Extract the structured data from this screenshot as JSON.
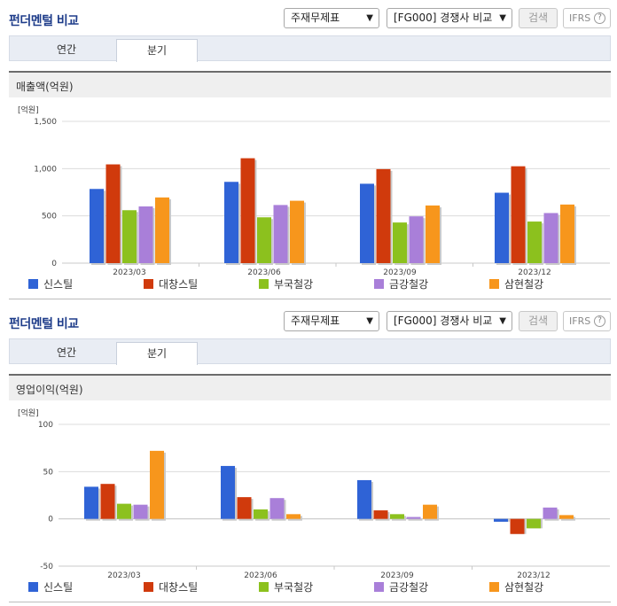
{
  "sections": [
    {
      "title": "펀더멘털 비교",
      "select_type": "주재무제표",
      "select_compare": "[FG000] 경쟁사 비교",
      "search_label": "검색",
      "ifrs_label": "IFRS",
      "help_label": "?",
      "tab_annual": "연간",
      "tab_quarter": "분기",
      "chart_title": "매출액(억원)"
    },
    {
      "title": "펀더멘털 비교",
      "select_type": "주재무제표",
      "select_compare": "[FG000] 경쟁사 비교",
      "search_label": "검색",
      "ifrs_label": "IFRS",
      "help_label": "?",
      "tab_annual": "연간",
      "tab_quarter": "분기",
      "chart_title": "영업이익(억원)"
    }
  ],
  "chart_data": [
    {
      "type": "bar",
      "title": "매출액(억원)",
      "unit_label": "[억원]",
      "categories": [
        "2023/03",
        "2023/06",
        "2023/09",
        "2023/12"
      ],
      "ylim": [
        0,
        1500
      ],
      "yticks": [
        "0",
        "500",
        "1,000",
        "1,500"
      ],
      "ytick_values": [
        0,
        500,
        1000,
        1500
      ],
      "grid": true,
      "legend_position": "bottom",
      "series": [
        {
          "name": "신스틸",
          "color": "#2f63d6",
          "values": [
            785,
            860,
            840,
            745
          ]
        },
        {
          "name": "대창스틸",
          "color": "#d03a0c",
          "values": [
            1045,
            1110,
            995,
            1025
          ]
        },
        {
          "name": "부국철강",
          "color": "#8cc11e",
          "values": [
            560,
            485,
            430,
            440
          ]
        },
        {
          "name": "금강철강",
          "color": "#a97fd9",
          "values": [
            600,
            615,
            495,
            530
          ]
        },
        {
          "name": "삼현철강",
          "color": "#f7961c",
          "values": [
            695,
            660,
            610,
            620
          ]
        }
      ]
    },
    {
      "type": "bar",
      "title": "영업이익(억원)",
      "unit_label": "[억원]",
      "categories": [
        "2023/03",
        "2023/06",
        "2023/09",
        "2023/12"
      ],
      "ylim": [
        -50,
        100
      ],
      "yticks": [
        "-50",
        "0",
        "50",
        "100"
      ],
      "ytick_values": [
        -50,
        0,
        50,
        100
      ],
      "grid": true,
      "legend_position": "bottom",
      "series": [
        {
          "name": "신스틸",
          "color": "#2f63d6",
          "values": [
            34,
            56,
            41,
            -3
          ]
        },
        {
          "name": "대창스틸",
          "color": "#d03a0c",
          "values": [
            37,
            23,
            9,
            -16
          ]
        },
        {
          "name": "부국철강",
          "color": "#8cc11e",
          "values": [
            16,
            10,
            5,
            -10
          ]
        },
        {
          "name": "금강철강",
          "color": "#a97fd9",
          "values": [
            15,
            22,
            2,
            12
          ]
        },
        {
          "name": "삼현철강",
          "color": "#f7961c",
          "values": [
            72,
            5,
            15,
            4
          ]
        }
      ]
    }
  ]
}
